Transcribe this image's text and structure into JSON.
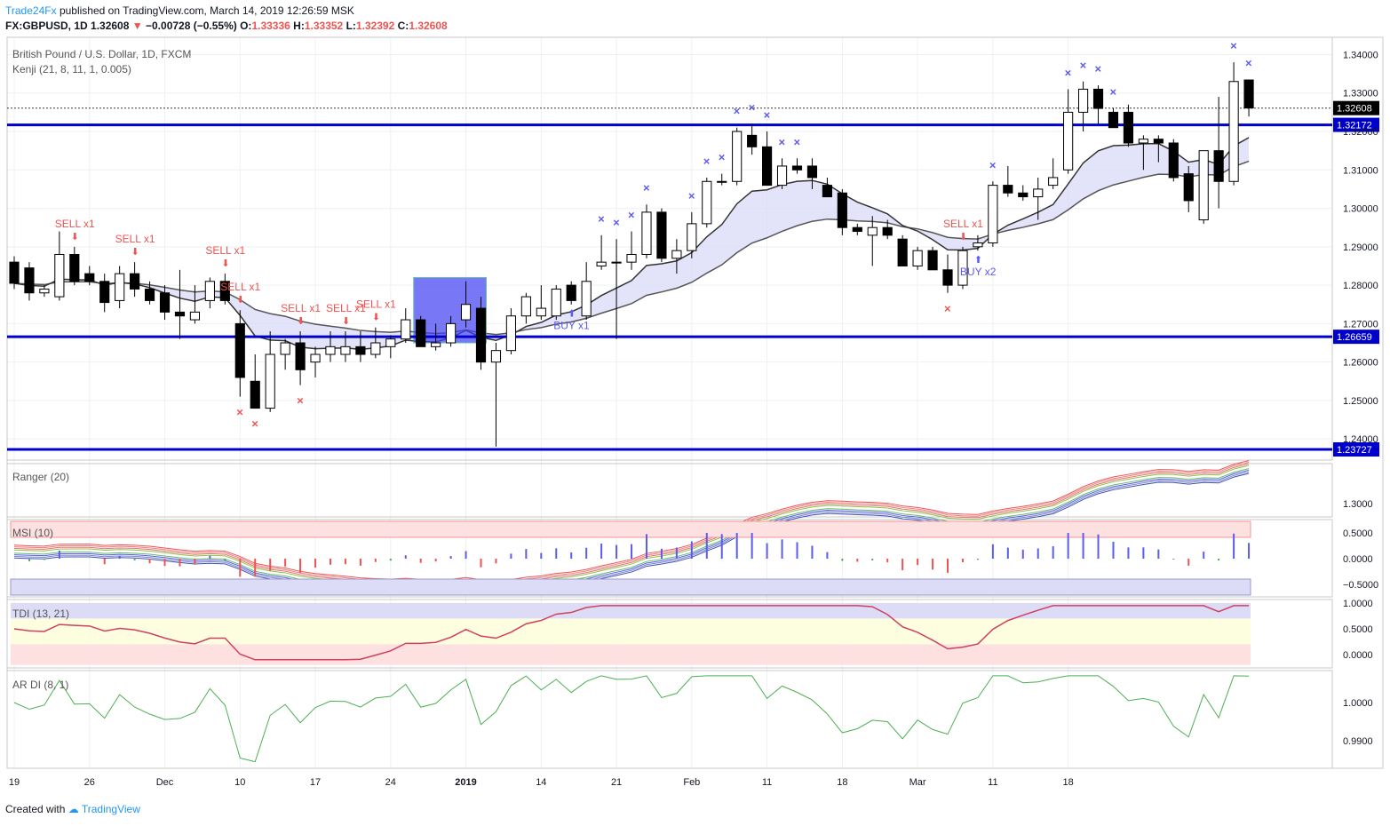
{
  "header": {
    "publisher": "Trade24Fx",
    "published_text": "published on TradingView.com, March 14, 2019 12:26:59 MSK",
    "symbol": "FX:GBPUSD, 1D",
    "last": "1.32608",
    "change": "−0.00728 (−0.55%)",
    "open_label": "O:",
    "open": "1.33336",
    "high_label": "H:",
    "high": "1.33352",
    "low_label": "L:",
    "low": "1.32392",
    "close_label": "C:",
    "close": "1.32608"
  },
  "chart_title": "British Pound / U.S. Dollar, 1D, FXCM",
  "indicator_main": "Kenji (21, 8, 11, 1, 0.005)",
  "footer": {
    "created_with": "Created with",
    "brand": "TradingView"
  },
  "colors": {
    "up": "#ffffff",
    "down": "#000000",
    "level": "#0000cc",
    "sell": "#ef5350",
    "buy": "#5b5bf0",
    "band_red": "#fde0e0",
    "band_blue": "#dcdcf7",
    "band_green": "#dff3dc"
  },
  "chart_data": {
    "type": "candlestick",
    "x_labels": [
      "19",
      "26",
      "Dec",
      "10",
      "17",
      "24",
      "2019",
      "14",
      "21",
      "Feb",
      "11",
      "18",
      "Mar",
      "11",
      "18"
    ],
    "x_label_index": [
      0,
      5,
      10,
      15,
      20,
      25,
      30,
      35,
      40,
      45,
      50,
      55,
      60,
      65,
      70
    ],
    "y_ticks": [
      "1.34000",
      "1.33000",
      "1.32000",
      "1.31000",
      "1.30000",
      "1.29000",
      "1.28000",
      "1.27000",
      "1.26000",
      "1.25000",
      "1.24000"
    ],
    "y_tick_values": [
      1.34,
      1.33,
      1.32,
      1.31,
      1.3,
      1.29,
      1.28,
      1.27,
      1.26,
      1.25,
      1.24
    ],
    "ylim": [
      1.2345,
      1.3445
    ],
    "levels": [
      "1.32172",
      "1.26659",
      "1.23727"
    ],
    "level_values": [
      1.32172,
      1.26659,
      1.23727
    ],
    "last_price": "1.32608",
    "last_price_value": 1.32608,
    "candles": [
      [
        1.286,
        1.2875,
        1.279,
        1.2805
      ],
      [
        1.2845,
        1.286,
        1.276,
        1.278
      ],
      [
        1.278,
        1.28,
        1.277,
        1.279
      ],
      [
        1.277,
        1.294,
        1.276,
        1.288
      ],
      [
        1.288,
        1.29,
        1.28,
        1.281
      ],
      [
        1.283,
        1.285,
        1.28,
        1.281
      ],
      [
        1.281,
        1.283,
        1.273,
        1.2755
      ],
      [
        1.276,
        1.285,
        1.274,
        1.283
      ],
      [
        1.283,
        1.286,
        1.277,
        1.279
      ],
      [
        1.279,
        1.281,
        1.275,
        1.276
      ],
      [
        1.278,
        1.28,
        1.271,
        1.273
      ],
      [
        1.273,
        1.284,
        1.266,
        1.272
      ],
      [
        1.271,
        1.28,
        1.27,
        1.273
      ],
      [
        1.276,
        1.282,
        1.274,
        1.281
      ],
      [
        1.281,
        1.283,
        1.275,
        1.276
      ],
      [
        1.27,
        1.2735,
        1.251,
        1.256
      ],
      [
        1.255,
        1.262,
        1.248,
        1.248
      ],
      [
        1.248,
        1.268,
        1.247,
        1.262
      ],
      [
        1.262,
        1.266,
        1.258,
        1.265
      ],
      [
        1.265,
        1.268,
        1.254,
        1.258
      ],
      [
        1.26,
        1.264,
        1.256,
        1.262
      ],
      [
        1.262,
        1.268,
        1.26,
        1.264
      ],
      [
        1.262,
        1.268,
        1.26,
        1.264
      ],
      [
        1.264,
        1.268,
        1.26,
        1.262
      ],
      [
        1.262,
        1.269,
        1.261,
        1.265
      ],
      [
        1.264,
        1.267,
        1.261,
        1.266
      ],
      [
        1.266,
        1.274,
        1.265,
        1.271
      ],
      [
        1.271,
        1.272,
        1.264,
        1.264
      ],
      [
        1.264,
        1.27,
        1.263,
        1.265
      ],
      [
        1.265,
        1.272,
        1.264,
        1.27
      ],
      [
        1.271,
        1.281,
        1.269,
        1.275
      ],
      [
        1.274,
        1.277,
        1.258,
        1.26
      ],
      [
        1.26,
        1.265,
        1.238,
        1.263
      ],
      [
        1.263,
        1.274,
        1.262,
        1.272
      ],
      [
        1.272,
        1.278,
        1.27,
        1.277
      ],
      [
        1.272,
        1.28,
        1.271,
        1.274
      ],
      [
        1.272,
        1.28,
        1.271,
        1.279
      ],
      [
        1.28,
        1.281,
        1.275,
        1.276
      ],
      [
        1.272,
        1.286,
        1.271,
        1.281
      ],
      [
        1.285,
        1.293,
        1.284,
        1.286
      ],
      [
        1.286,
        1.292,
        1.266,
        1.286
      ],
      [
        1.286,
        1.294,
        1.284,
        1.288
      ],
      [
        1.288,
        1.301,
        1.287,
        1.299
      ],
      [
        1.299,
        1.3,
        1.286,
        1.287
      ],
      [
        1.287,
        1.292,
        1.283,
        1.289
      ],
      [
        1.289,
        1.299,
        1.287,
        1.296
      ],
      [
        1.296,
        1.308,
        1.295,
        1.307
      ],
      [
        1.307,
        1.309,
        1.306,
        1.307
      ],
      [
        1.307,
        1.321,
        1.306,
        1.32
      ],
      [
        1.319,
        1.322,
        1.314,
        1.316
      ],
      [
        1.316,
        1.32,
        1.306,
        1.306
      ],
      [
        1.306,
        1.313,
        1.305,
        1.311
      ],
      [
        1.311,
        1.313,
        1.309,
        1.31
      ],
      [
        1.311,
        1.313,
        1.305,
        1.308
      ],
      [
        1.306,
        1.308,
        1.303,
        1.303
      ],
      [
        1.304,
        1.305,
        1.293,
        1.295
      ],
      [
        1.295,
        1.296,
        1.293,
        1.294
      ],
      [
        1.293,
        1.298,
        1.285,
        1.295
      ],
      [
        1.295,
        1.297,
        1.292,
        1.293
      ],
      [
        1.292,
        1.293,
        1.285,
        1.285
      ],
      [
        1.285,
        1.29,
        1.284,
        1.289
      ],
      [
        1.289,
        1.29,
        1.284,
        1.284
      ],
      [
        1.284,
        1.288,
        1.278,
        1.28
      ],
      [
        1.28,
        1.29,
        1.279,
        1.289
      ],
      [
        1.29,
        1.293,
        1.289,
        1.291
      ],
      [
        1.291,
        1.307,
        1.29,
        1.306
      ],
      [
        1.306,
        1.311,
        1.303,
        1.304
      ],
      [
        1.304,
        1.306,
        1.302,
        1.303
      ],
      [
        1.303,
        1.308,
        1.297,
        1.305
      ],
      [
        1.306,
        1.313,
        1.305,
        1.308
      ],
      [
        1.31,
        1.331,
        1.309,
        1.325
      ],
      [
        1.325,
        1.333,
        1.32,
        1.331
      ],
      [
        1.331,
        1.332,
        1.322,
        1.326
      ],
      [
        1.325,
        1.326,
        1.321,
        1.321
      ],
      [
        1.325,
        1.327,
        1.316,
        1.317
      ],
      [
        1.317,
        1.319,
        1.31,
        1.318
      ],
      [
        1.318,
        1.319,
        1.312,
        1.317
      ],
      [
        1.317,
        1.318,
        1.307,
        1.308
      ],
      [
        1.309,
        1.311,
        1.299,
        1.302
      ],
      [
        1.297,
        1.315,
        1.296,
        1.315
      ],
      [
        1.315,
        1.329,
        1.3,
        1.307
      ],
      [
        1.307,
        1.338,
        1.306,
        1.333
      ],
      [
        1.3334,
        1.3335,
        1.3239,
        1.3261
      ]
    ],
    "signals": {
      "sell": [
        {
          "i": 4,
          "label": "SELL x1"
        },
        {
          "i": 8,
          "label": "SELL x1"
        },
        {
          "i": 14,
          "label": "SELL x1"
        },
        {
          "i": 15,
          "label": "SELL x1"
        },
        {
          "i": 19,
          "label": "SELL x1"
        },
        {
          "i": 22,
          "label": "SELL x1"
        },
        {
          "i": 24,
          "label": "SELL x1"
        },
        {
          "i": 63,
          "label": "SELL x1"
        }
      ],
      "buy": [
        {
          "i": 37,
          "label": "BUY x1"
        },
        {
          "i": 64,
          "label": "BUY x2"
        }
      ]
    },
    "indicators": [
      {
        "name": "Ranger (20)",
        "y_ticks": [
          "1.3000"
        ]
      },
      {
        "name": "MSI (10)",
        "y_ticks": [
          "0.5000",
          "0.0000",
          "−0.5000"
        ]
      },
      {
        "name": "TDI (13, 21)",
        "y_ticks": [
          "1.0000",
          "0.5000",
          "0.0000"
        ]
      },
      {
        "name": "AR DI (8, 1)",
        "y_ticks": [
          "1.0000",
          "0.9900"
        ]
      }
    ]
  }
}
